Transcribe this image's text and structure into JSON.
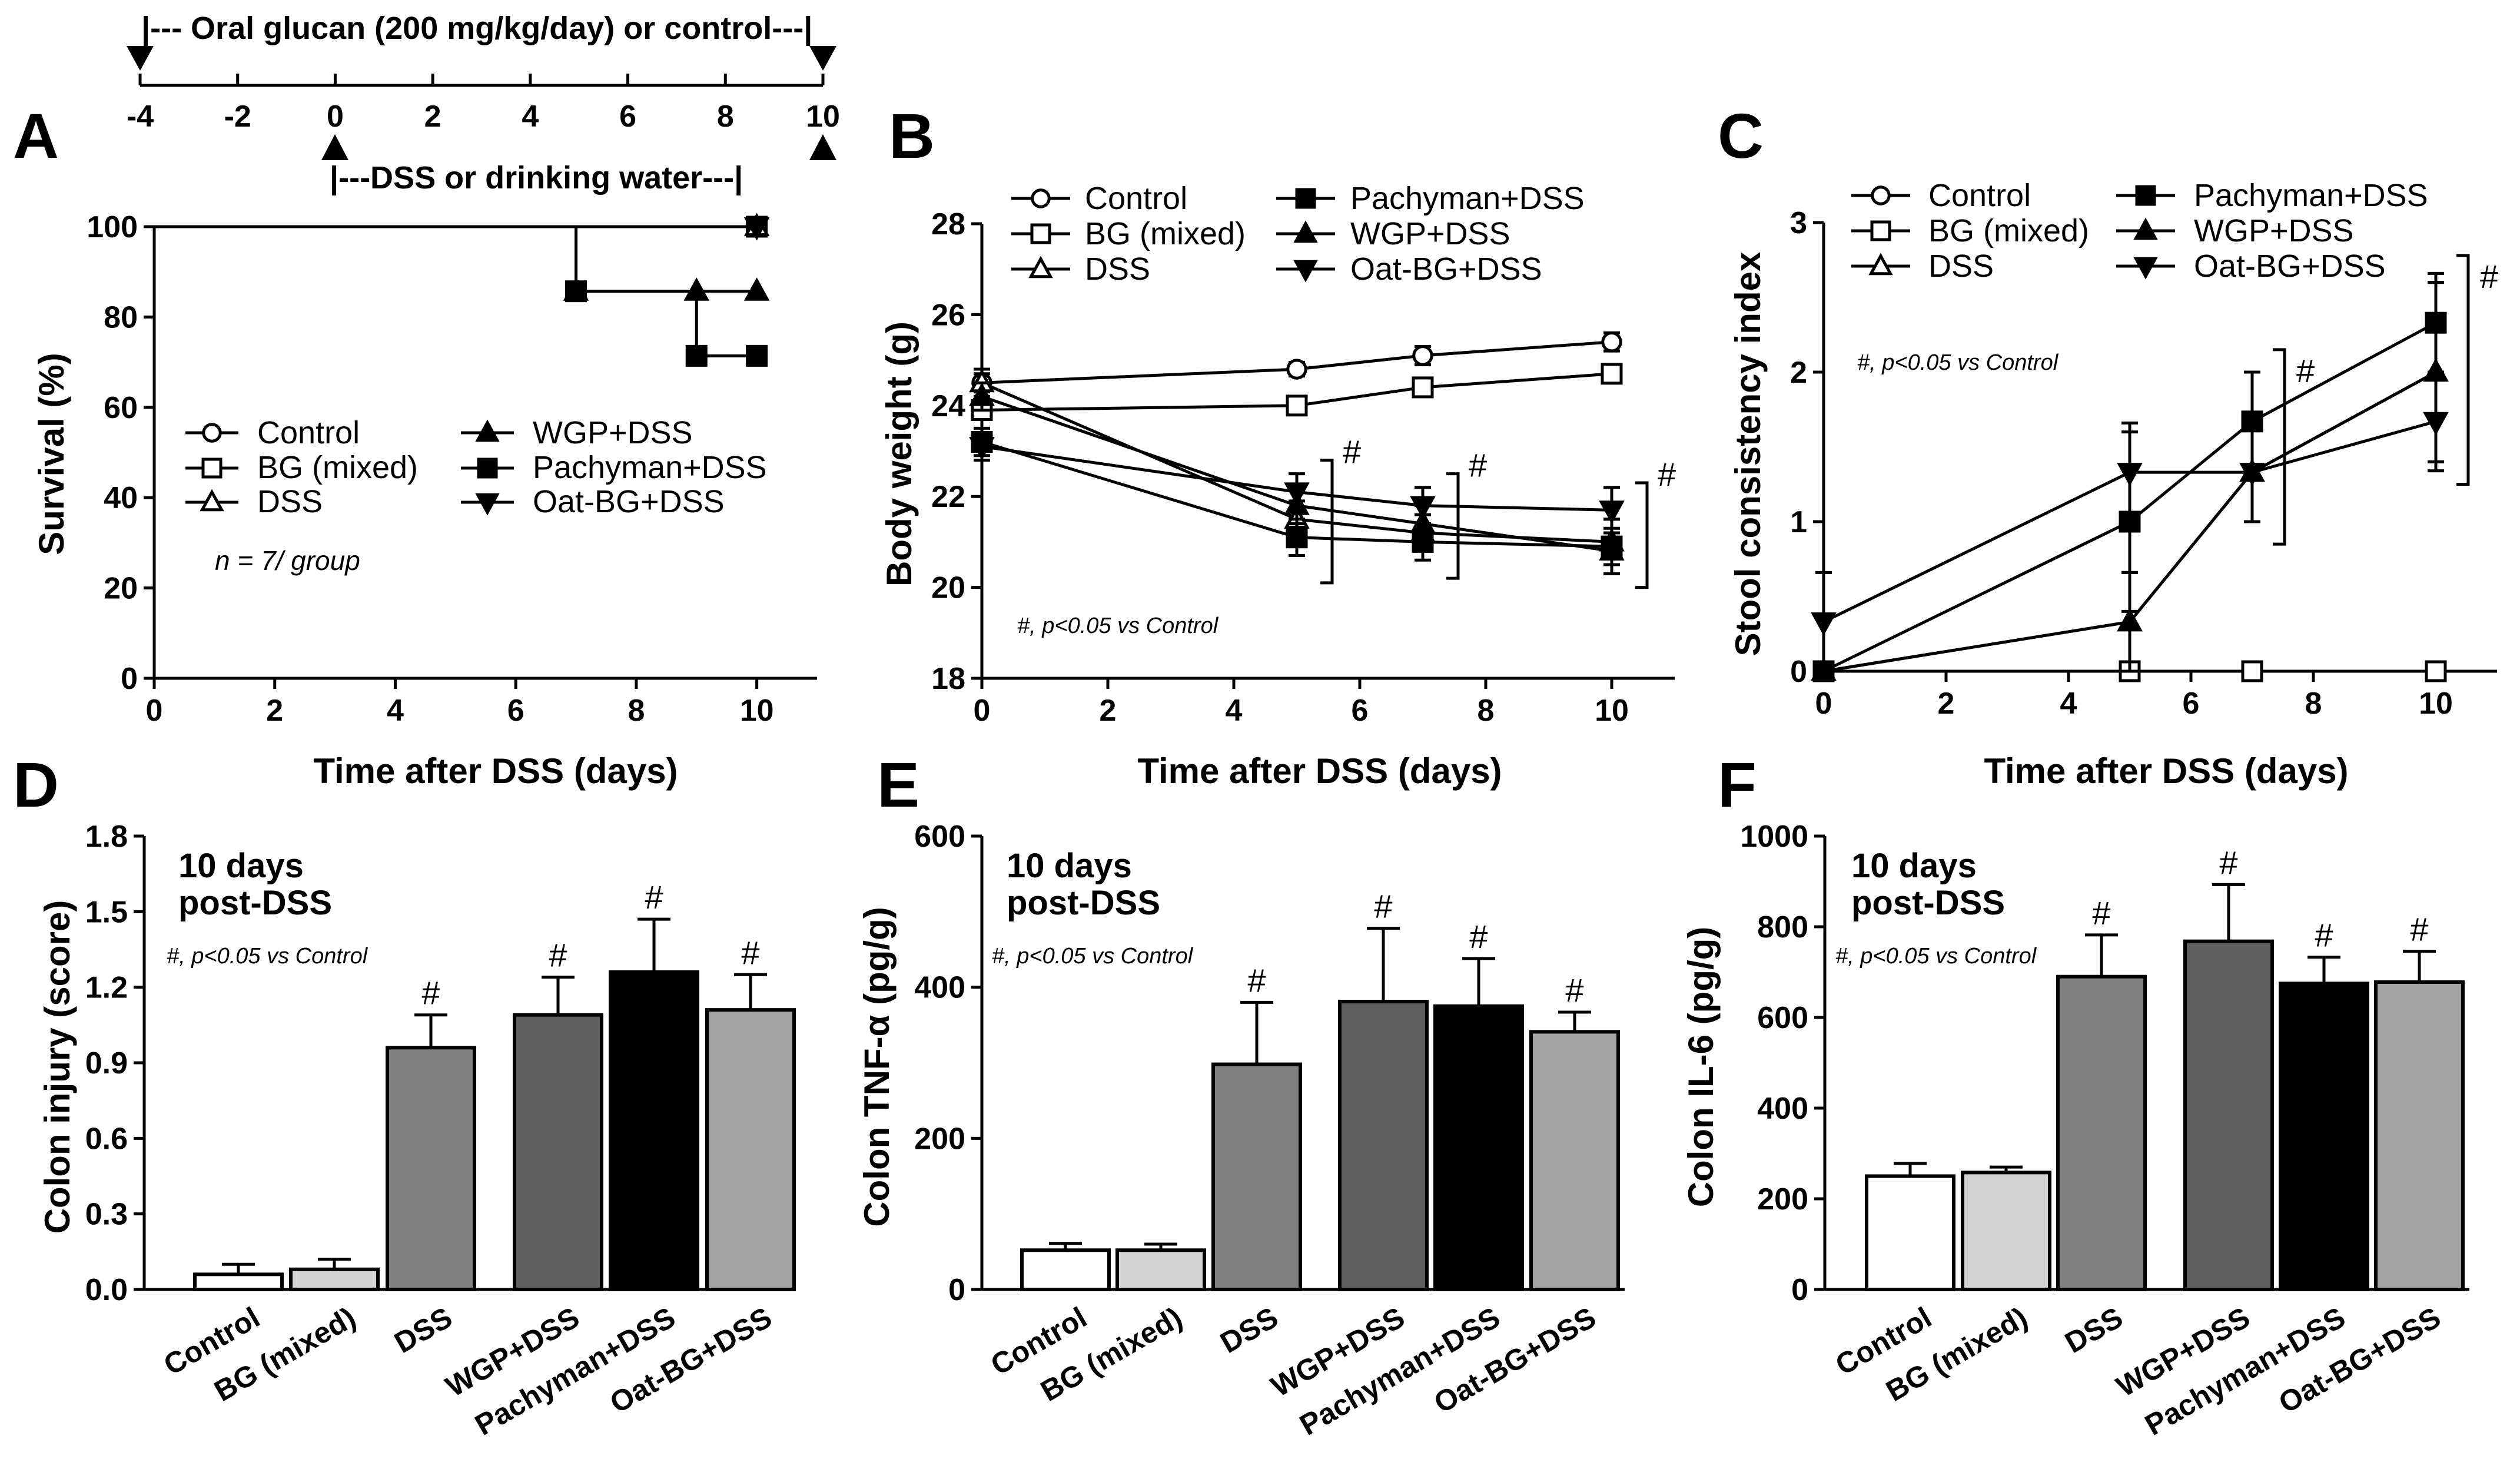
{
  "timeline": {
    "top_label": "|--- Oral glucan (200 mg/kg/day) or control---|",
    "bottom_label": "|---DSS or drinking water---|",
    "ticks": [
      "-4",
      "-2",
      "0",
      "2",
      "4",
      "6",
      "8",
      "10"
    ]
  },
  "legend": {
    "control": "Control",
    "bg": "BG (mixed)",
    "dss": "DSS",
    "wgp": "WGP+DSS",
    "pachyman": "Pachyman+DSS",
    "oat": "Oat-BG+DSS"
  },
  "panels": {
    "A": {
      "letter": "A",
      "ylabel": "Survival (%)",
      "xlabel": "Time after DSS (days)",
      "note": "n = 7/ group",
      "yticks": [
        "0",
        "20",
        "40",
        "60",
        "80",
        "100"
      ],
      "xticks": [
        "0",
        "2",
        "4",
        "6",
        "8",
        "10"
      ]
    },
    "B": {
      "letter": "B",
      "ylabel": "Body weight (g)",
      "xlabel": "Time after DSS (days)",
      "note": "#, p<0.05 vs Control",
      "yticks": [
        "18",
        "20",
        "22",
        "24",
        "26",
        "28"
      ],
      "xticks": [
        "0",
        "2",
        "4",
        "6",
        "8",
        "10"
      ]
    },
    "C": {
      "letter": "C",
      "ylabel": "Stool consistency index",
      "xlabel": "Time after DSS (days)",
      "note": "#, p<0.05 vs Control",
      "yticks": [
        "0",
        "1",
        "2",
        "3"
      ],
      "xticks": [
        "0",
        "2",
        "4",
        "6",
        "8",
        "10"
      ]
    },
    "D": {
      "letter": "D",
      "ylabel": "Colon injury (score)",
      "note": "#, p<0.05 vs Control",
      "days1": "10 days",
      "days2": "post-DSS",
      "yticks": [
        "0.0",
        "0.3",
        "0.6",
        "0.9",
        "1.2",
        "1.5",
        "1.8"
      ]
    },
    "E": {
      "letter": "E",
      "ylabel": "Colon TNF-α (pg/g)",
      "note": "#, p<0.05 vs Control",
      "days1": "10 days",
      "days2": "post-DSS",
      "yticks": [
        "0",
        "200",
        "400",
        "600"
      ]
    },
    "F": {
      "letter": "F",
      "ylabel": "Colon IL-6 (pg/g)",
      "note": "#, p<0.05 vs Control",
      "days1": "10 days",
      "days2": "post-DSS",
      "yticks": [
        "0",
        "200",
        "400",
        "600",
        "800",
        "1000"
      ]
    }
  },
  "chart_data": [
    {
      "panel": "A",
      "type": "line",
      "xlabel": "Time after DSS (days)",
      "ylabel": "Survival (%)",
      "xlim": [
        0,
        11
      ],
      "ylim": [
        0,
        100
      ],
      "series": [
        {
          "name": "Control",
          "x": [
            0,
            10
          ],
          "y": [
            100,
            100
          ]
        },
        {
          "name": "BG (mixed)",
          "x": [
            0,
            10
          ],
          "y": [
            100,
            100
          ]
        },
        {
          "name": "DSS",
          "x": [
            0,
            10
          ],
          "y": [
            100,
            100
          ]
        },
        {
          "name": "WGP+DSS",
          "x": [
            0,
            7,
            9,
            10
          ],
          "y": [
            100,
            85.7,
            85.7,
            85.7
          ]
        },
        {
          "name": "Pachyman+DSS",
          "x": [
            0,
            7,
            9,
            10
          ],
          "y": [
            100,
            85.7,
            71.4,
            71.4
          ]
        },
        {
          "name": "Oat-BG+DSS",
          "x": [
            0,
            10
          ],
          "y": [
            100,
            100
          ]
        }
      ]
    },
    {
      "panel": "B",
      "type": "line",
      "xlabel": "Time after DSS (days)",
      "ylabel": "Body weight (g)",
      "xlim": [
        0,
        11
      ],
      "ylim": [
        18,
        28
      ],
      "series": [
        {
          "name": "Control",
          "x": [
            0,
            5,
            7,
            10
          ],
          "y": [
            24.5,
            24.8,
            25.1,
            25.4
          ],
          "err": [
            0.2,
            0.15,
            0.2,
            0.2
          ]
        },
        {
          "name": "BG (mixed)",
          "x": [
            0,
            5,
            7,
            10
          ],
          "y": [
            23.9,
            24.0,
            24.4,
            24.7
          ],
          "err": [
            0.2,
            0.15,
            0.2,
            0.15
          ]
        },
        {
          "name": "DSS",
          "x": [
            0,
            5,
            7,
            10
          ],
          "y": [
            24.5,
            21.5,
            21.2,
            21.0
          ],
          "err": [
            0.3,
            0.4,
            0.4,
            0.5
          ]
        },
        {
          "name": "Pachyman+DSS",
          "x": [
            0,
            5,
            7,
            10
          ],
          "y": [
            23.2,
            21.1,
            21.0,
            20.9
          ],
          "err": [
            0.3,
            0.4,
            0.4,
            0.6
          ]
        },
        {
          "name": "WGP+DSS",
          "x": [
            0,
            5,
            7,
            10
          ],
          "y": [
            24.2,
            21.8,
            21.4,
            20.8
          ],
          "err": [
            0.3,
            0.4,
            0.4,
            0.5
          ]
        },
        {
          "name": "Oat-BG+DSS",
          "x": [
            0,
            5,
            7,
            10
          ],
          "y": [
            23.1,
            22.1,
            21.8,
            21.7
          ],
          "err": [
            0.3,
            0.4,
            0.4,
            0.5
          ]
        }
      ]
    },
    {
      "panel": "C",
      "type": "line",
      "xlabel": "Time after DSS (days)",
      "ylabel": "Stool consistency index",
      "xlim": [
        0,
        11
      ],
      "ylim": [
        0,
        3
      ],
      "series": [
        {
          "name": "Control",
          "x": [
            0,
            5,
            7,
            10
          ],
          "y": [
            0,
            0,
            0,
            0
          ],
          "err": [
            0,
            0,
            0,
            0
          ]
        },
        {
          "name": "BG (mixed)",
          "x": [
            0,
            5,
            7,
            10
          ],
          "y": [
            0,
            0,
            0,
            0
          ],
          "err": [
            0,
            0,
            0,
            0
          ]
        },
        {
          "name": "DSS",
          "x": [
            0,
            5,
            7,
            10
          ],
          "y": [
            0,
            0.33,
            1.33,
            2.0
          ],
          "err": [
            0,
            0.33,
            0.33,
            0.6
          ]
        },
        {
          "name": "Pachyman+DSS",
          "x": [
            0,
            5,
            7,
            10
          ],
          "y": [
            0,
            1.0,
            1.67,
            2.33
          ],
          "err": [
            0,
            0.6,
            0.33,
            0.33
          ]
        },
        {
          "name": "WGP+DSS",
          "x": [
            0,
            5,
            7,
            10
          ],
          "y": [
            0,
            0.33,
            1.33,
            2.0
          ],
          "err": [
            0,
            0.33,
            0.33,
            0.6
          ]
        },
        {
          "name": "Oat-BG+DSS",
          "x": [
            0,
            5,
            7,
            10
          ],
          "y": [
            0.33,
            1.33,
            1.33,
            1.67
          ],
          "err": [
            0.33,
            0.33,
            0.33,
            0.33
          ]
        }
      ]
    },
    {
      "panel": "D",
      "type": "bar",
      "ylabel": "Colon injury (score)",
      "ylim": [
        0,
        1.8
      ],
      "categories": [
        "Control",
        "BG (mixed)",
        "DSS",
        "WGP+DSS",
        "Pachyman+DSS",
        "Oat-BG+DSS"
      ],
      "values": [
        0.06,
        0.08,
        0.96,
        1.09,
        1.26,
        1.11
      ],
      "errors": [
        0.04,
        0.04,
        0.13,
        0.15,
        0.21,
        0.14
      ],
      "significant": [
        false,
        false,
        true,
        true,
        true,
        true
      ],
      "colors": [
        "#ffffff",
        "#d3d3d3",
        "#808080",
        "#5e5e5e",
        "#000000",
        "#a3a3a3"
      ]
    },
    {
      "panel": "E",
      "type": "bar",
      "ylabel": "Colon TNF-α (pg/g)",
      "ylim": [
        0,
        600
      ],
      "categories": [
        "Control",
        "BG (mixed)",
        "DSS",
        "WGP+DSS",
        "Pachyman+DSS",
        "Oat-BG+DSS"
      ],
      "values": [
        52,
        52,
        298,
        381,
        375,
        341
      ],
      "errors": [
        9,
        8,
        82,
        97,
        63,
        26
      ],
      "significant": [
        false,
        false,
        true,
        true,
        true,
        true
      ],
      "colors": [
        "#ffffff",
        "#d3d3d3",
        "#808080",
        "#5e5e5e",
        "#000000",
        "#a3a3a3"
      ]
    },
    {
      "panel": "F",
      "type": "bar",
      "ylabel": "Colon IL-6 (pg/g)",
      "ylim": [
        0,
        1000
      ],
      "categories": [
        "Control",
        "BG (mixed)",
        "DSS",
        "WGP+DSS",
        "Pachyman+DSS",
        "Oat-BG+DSS"
      ],
      "values": [
        250,
        258,
        690,
        768,
        675,
        678
      ],
      "errors": [
        28,
        12,
        92,
        125,
        58,
        68
      ],
      "significant": [
        false,
        false,
        true,
        true,
        true,
        true
      ],
      "colors": [
        "#ffffff",
        "#d3d3d3",
        "#808080",
        "#5e5e5e",
        "#000000",
        "#a3a3a3"
      ]
    }
  ]
}
